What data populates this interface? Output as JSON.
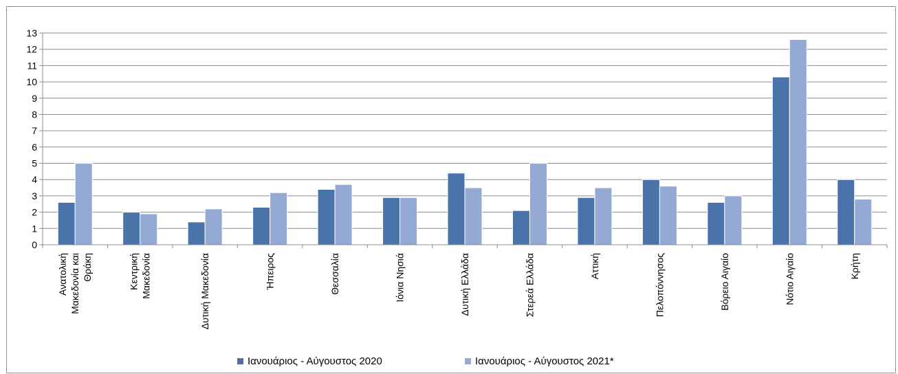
{
  "chart_data": {
    "type": "bar",
    "categories": [
      [
        "Ανατολική",
        "Μακεδονία και",
        "Θράκη"
      ],
      [
        "Κεντρική",
        "Μακεδονία"
      ],
      [
        "Δυτική Μακεδονία"
      ],
      [
        "Ήπειρος"
      ],
      [
        "Θεσσαλία"
      ],
      [
        "Ιόνια Νησιά"
      ],
      [
        "Δυτική Ελλάδα"
      ],
      [
        "Στερεά Ελλάδα"
      ],
      [
        "Αττική"
      ],
      [
        "Πελοπόννησος"
      ],
      [
        "Βόρειο Αιγαίο"
      ],
      [
        "Νότιο Αιγαίο"
      ],
      [
        "Κρήτη"
      ]
    ],
    "series": [
      {
        "name": "Ιανουάριος - Αύγουστος 2020",
        "color": "#4a73aa",
        "values": [
          2.6,
          2.0,
          1.4,
          2.3,
          3.4,
          2.9,
          4.4,
          2.1,
          2.9,
          4.0,
          2.6,
          10.3,
          4.0
        ]
      },
      {
        "name": "Ιανουάριος - Αύγουστος 2021*",
        "color": "#94a9d3",
        "values": [
          5.0,
          1.9,
          2.2,
          3.2,
          3.7,
          2.9,
          3.5,
          5.0,
          3.5,
          3.6,
          3.0,
          12.6,
          2.8
        ]
      }
    ],
    "yticks": [
      0,
      1,
      2,
      3,
      4,
      5,
      6,
      7,
      8,
      9,
      10,
      11,
      12,
      13
    ],
    "ylim": [
      0,
      13
    ],
    "grid": true,
    "legend": "bottom"
  }
}
